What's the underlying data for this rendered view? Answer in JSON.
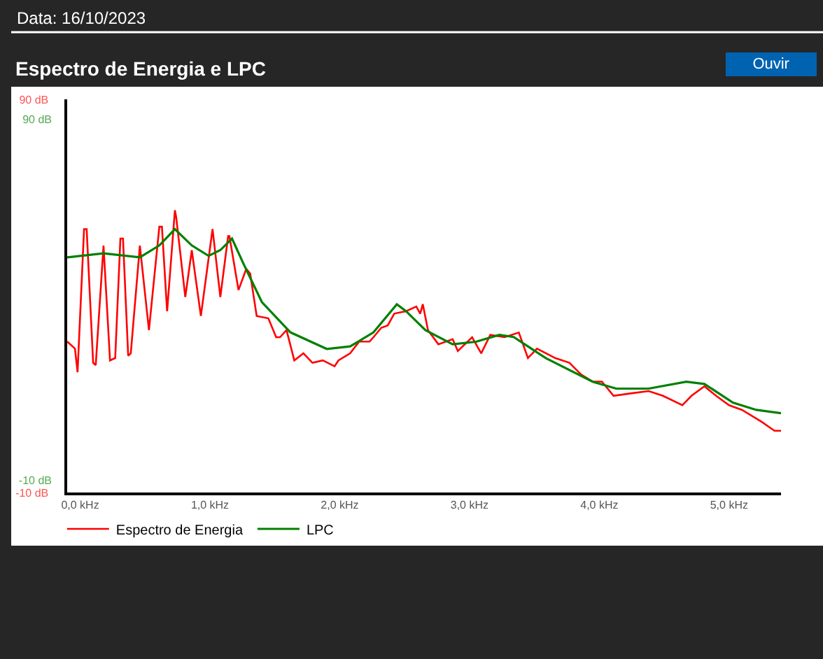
{
  "chart_data": {
    "type": "line",
    "title": "Espectro de Energia e LPC",
    "annotations": [
      "Data: 16/10/2023",
      "Ouvir"
    ],
    "xlim": [
      -0.1,
      5.4
    ],
    "xticks": [
      {
        "value": 0,
        "label": "0,0 kHz"
      },
      {
        "value": 1,
        "label": "1,0 kHz"
      },
      {
        "value": 2,
        "label": "2,0 kHz"
      },
      {
        "value": 3,
        "label": "3,0 kHz"
      },
      {
        "value": 4,
        "label": "4,0 kHz"
      },
      {
        "value": 5,
        "label": "5,0 kHz"
      }
    ],
    "ylim": [
      -10,
      90
    ],
    "yticks": [
      {
        "value": 90,
        "label": "90 dB"
      },
      {
        "value": -10,
        "label": "-10 dB"
      }
    ],
    "y2lim": [
      -13.5,
      95.5
    ],
    "y2ticks": [
      {
        "value": 90,
        "label": "90 dB"
      },
      {
        "value": -10,
        "label": "-10 dB"
      }
    ],
    "legend": "bottom",
    "marker": "none",
    "line_style": "solid",
    "series": [
      {
        "name": "Espectro de Energia",
        "color": "#ff0000",
        "x": [
          -0.1,
          -0.04,
          -0.02,
          0.03,
          0.05,
          0.1,
          0.12,
          0.18,
          0.23,
          0.27,
          0.31,
          0.33,
          0.37,
          0.39,
          0.46,
          0.53,
          0.61,
          0.63,
          0.67,
          0.73,
          0.74,
          0.81,
          0.86,
          0.93,
          1.02,
          1.08,
          1.14,
          1.15,
          1.22,
          1.28,
          1.31,
          1.36,
          1.45,
          1.51,
          1.54,
          1.59,
          1.65,
          1.72,
          1.79,
          1.87,
          1.96,
          1.99,
          2.08,
          2.15,
          2.23,
          2.26,
          2.32,
          2.37,
          2.42,
          2.48,
          2.51,
          2.59,
          2.62,
          2.64,
          2.68,
          2.76,
          2.87,
          2.91,
          3.02,
          3.09,
          3.16,
          3.27,
          3.38,
          3.45,
          3.52,
          3.66,
          3.77,
          3.86,
          3.95,
          4.02,
          4.11,
          4.24,
          4.38,
          4.49,
          4.64,
          4.71,
          4.81,
          4.9,
          5.0,
          5.1,
          5.25,
          5.35,
          5.4
        ],
        "values": [
          28.4,
          26.6,
          20.6,
          57,
          57,
          23,
          22.4,
          52.8,
          23.6,
          24.2,
          54.6,
          54.6,
          24.8,
          25.4,
          52.8,
          31.3,
          57.6,
          57.6,
          36.1,
          61.8,
          60,
          39.7,
          51.6,
          34.9,
          57,
          39.7,
          55.2,
          55.2,
          41.5,
          46.9,
          45.7,
          34.9,
          34.3,
          29.5,
          29.5,
          31.3,
          23.6,
          25.4,
          23,
          23.6,
          22.1,
          23.6,
          25.4,
          28.4,
          28.4,
          29.5,
          31.9,
          32.5,
          35.5,
          35.9,
          36.1,
          37.3,
          35.5,
          37.9,
          31.3,
          27.7,
          29,
          26,
          29.5,
          25.4,
          30.1,
          29.5,
          30.7,
          24.2,
          26.6,
          24.2,
          23,
          20,
          18.2,
          18.2,
          14.6,
          15.2,
          15.8,
          14.6,
          12.2,
          14.6,
          17,
          14.6,
          12.2,
          11,
          8,
          5.7,
          5.7
        ]
      },
      {
        "name": "LPC",
        "color": "#008000",
        "axis": "y2",
        "x": [
          -0.1,
          0.18,
          0.46,
          0.61,
          0.73,
          0.86,
          0.99,
          1.08,
          1.17,
          1.26,
          1.4,
          1.62,
          1.9,
          2.08,
          2.26,
          2.44,
          2.51,
          2.66,
          2.87,
          3.05,
          3.23,
          3.34,
          3.59,
          3.95,
          4.13,
          4.38,
          4.67,
          4.81,
          5.03,
          5.21,
          5.4
        ],
        "values": [
          51.7,
          52.8,
          51.7,
          55,
          59.5,
          55,
          52.1,
          53.7,
          56.9,
          49.8,
          39.3,
          30.9,
          26.3,
          27,
          30.9,
          38.7,
          36.8,
          31.5,
          27.6,
          28.3,
          30.2,
          29.6,
          23.7,
          17.2,
          15.3,
          15.3,
          17.2,
          16.6,
          11.4,
          9.4,
          8.5
        ]
      }
    ]
  }
}
